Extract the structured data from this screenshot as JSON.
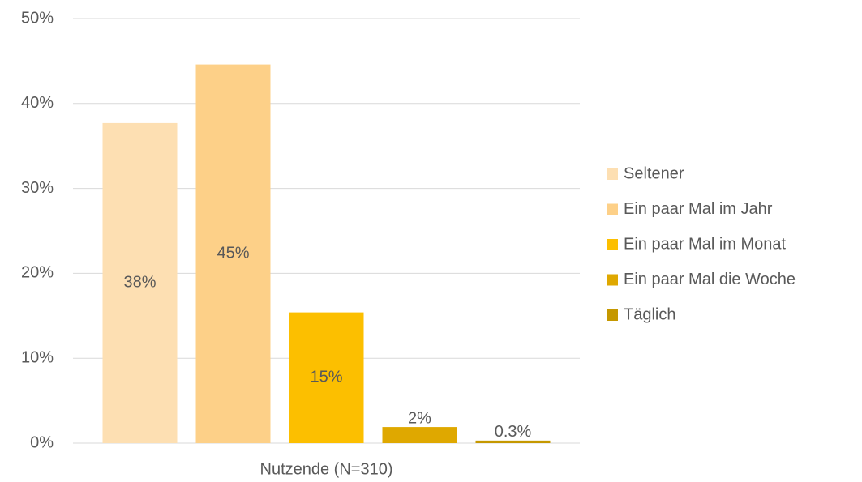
{
  "chart_data": {
    "type": "bar",
    "categories": [
      "Nutzende (N=310)"
    ],
    "series": [
      {
        "name": "Seltener",
        "color": "#fddfb2",
        "values": [
          37.7
        ],
        "value_labels": [
          "38%"
        ]
      },
      {
        "name": "Ein paar Mal im Jahr",
        "color": "#fdd088",
        "values": [
          44.6
        ],
        "value_labels": [
          "45%"
        ]
      },
      {
        "name": "Ein paar Mal im Monat",
        "color": "#fcbf00",
        "values": [
          15.4
        ],
        "value_labels": [
          "15%"
        ]
      },
      {
        "name": "Ein paar Mal die Woche",
        "color": "#dfa800",
        "values": [
          1.9
        ],
        "value_labels": [
          "2%"
        ]
      },
      {
        "name": "Täglich",
        "color": "#c59800",
        "values": [
          0.3
        ],
        "value_labels": [
          "0.3%"
        ]
      }
    ],
    "ylim": [
      0,
      50
    ],
    "yticks": [
      {
        "value": 0,
        "label": "0%"
      },
      {
        "value": 10,
        "label": "10%"
      },
      {
        "value": 20,
        "label": "20%"
      },
      {
        "value": 30,
        "label": "30%"
      },
      {
        "value": 40,
        "label": "40%"
      },
      {
        "value": 50,
        "label": "50%"
      }
    ],
    "grid": true,
    "legend": "right"
  }
}
